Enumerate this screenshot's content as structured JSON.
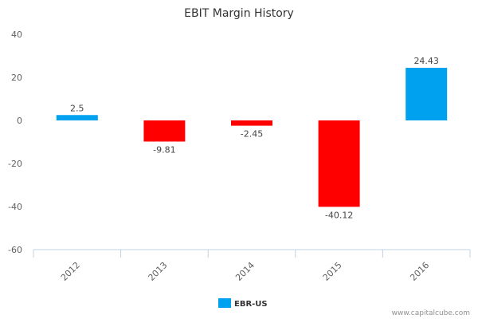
{
  "chart_data": {
    "type": "bar",
    "title": "EBIT Margin History",
    "categories": [
      "2012",
      "2013",
      "2014",
      "2015",
      "2016"
    ],
    "series": [
      {
        "name": "EBR-US",
        "values": [
          2.5,
          -9.81,
          -2.45,
          -40.12,
          24.43
        ]
      }
    ],
    "data_labels": [
      "2.5",
      "-9.81",
      "-2.45",
      "-40.12",
      "24.43"
    ],
    "ylim": [
      -60,
      40
    ],
    "yticks": [
      "40",
      "20",
      "0",
      "-20",
      "-40",
      "-60"
    ],
    "ytick_values": [
      40,
      20,
      0,
      -20,
      -40,
      -60
    ],
    "xlabel": "",
    "ylabel": "",
    "legend": "bottom-center",
    "colors": {
      "positive": "#00a2f0",
      "negative": "#ff0000",
      "axis": "#c0d0e0"
    }
  },
  "legend": {
    "label": "EBR-US",
    "color": "#00a2f0"
  },
  "credit": "www.capitalcube.com"
}
